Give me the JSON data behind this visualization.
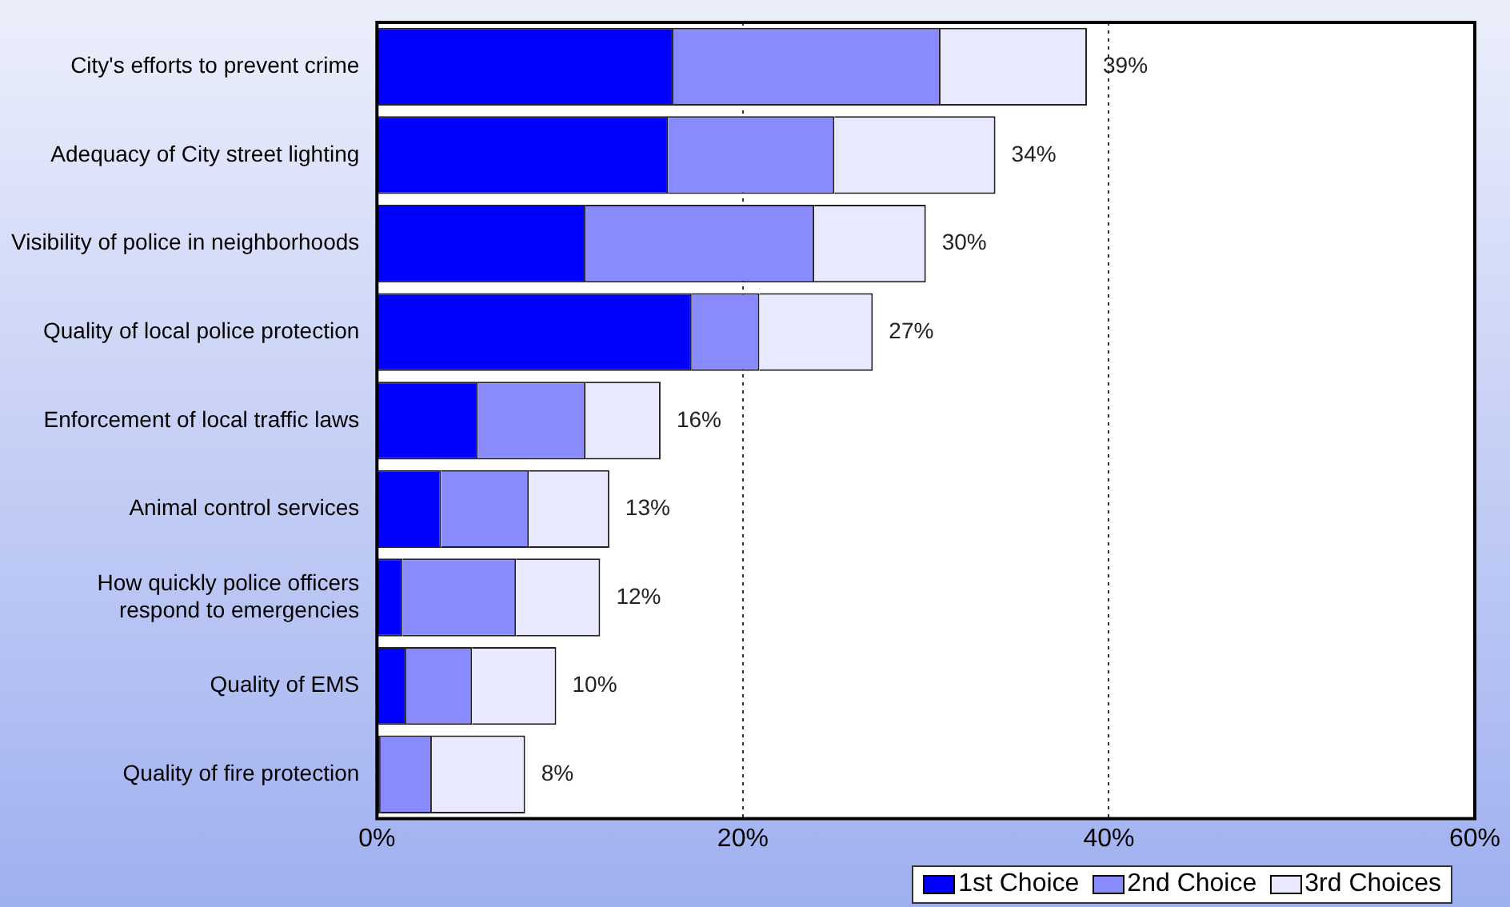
{
  "chart_data": {
    "type": "bar",
    "orientation": "horizontal",
    "stacked": true,
    "categories": [
      "City's efforts to prevent crime",
      "Adequacy of City street lighting",
      "Visibility of police in neighborhoods",
      "Quality of local police protection",
      "Enforcement of local traffic laws",
      "Animal control services",
      "How quickly police officers\nrespond to emergencies",
      "Quality of EMS",
      "Quality of fire protection"
    ],
    "series": [
      {
        "name": "1st Choice",
        "color": "#0000ff",
        "values": [
          16.2,
          15.9,
          11.4,
          17.2,
          5.5,
          3.5,
          1.4,
          1.6,
          0.2
        ]
      },
      {
        "name": "2nd Choice",
        "color": "#8a8aff",
        "values": [
          14.6,
          9.1,
          12.5,
          3.7,
          5.9,
          4.8,
          6.2,
          3.6,
          2.8
        ]
      },
      {
        "name": "3rd Choices",
        "color": "#e8e8ff",
        "values": [
          8.0,
          8.8,
          6.1,
          6.2,
          4.1,
          4.4,
          4.6,
          4.6,
          5.1
        ]
      }
    ],
    "totals": [
      "39%",
      "34%",
      "30%",
      "27%",
      "16%",
      "13%",
      "12%",
      "10%",
      "8%"
    ],
    "xlim": [
      0,
      60
    ],
    "xticks": [
      {
        "value": 0,
        "label": "0%"
      },
      {
        "value": 20,
        "label": "20%"
      },
      {
        "value": 40,
        "label": "40%"
      },
      {
        "value": 60,
        "label": "60%"
      }
    ],
    "grid": "x",
    "legend": "bottom right"
  }
}
